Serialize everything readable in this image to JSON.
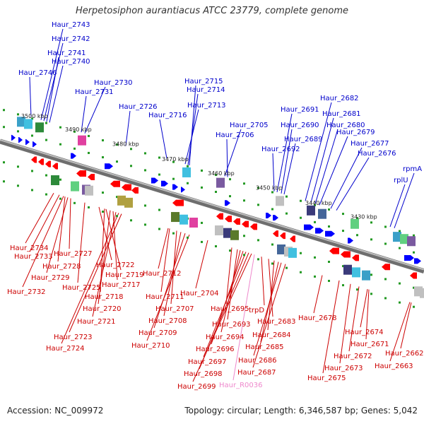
{
  "title": "Herpetosiphon aurantiacus ATCC 23779, complete genome",
  "footer": {
    "accession": "Accession: NC_009972",
    "info": "Topology: circular; Length: 6,346,587 bp; Genes: 5,042"
  },
  "colors": {
    "forward": "#0000ff",
    "reverse": "#ff0000",
    "label_forward": "#0000cc",
    "label_reverse": "#cc0000",
    "label_rna": "#ee88cc",
    "backbone": "#888888",
    "dots": "#229922"
  },
  "ticks": [
    "3500 kbp",
    "3490 kbp",
    "3480 kbp",
    "3470 kbp",
    "3460 kbp",
    "3450 kbp",
    "3440 kbp",
    "3430 kbp"
  ],
  "forward_genes": [
    "Haur_2743",
    "Haur_2742",
    "Haur_2741",
    "Haur_2740",
    "Haur_2746",
    "Haur_2730",
    "Haur_2731",
    "Haur_2715",
    "Haur_2714",
    "Haur_2713",
    "Haur_2726",
    "Haur_2716",
    "Haur_2705",
    "Haur_2706",
    "Haur_2682",
    "Haur_2691",
    "Haur_2681",
    "Haur_2690",
    "Haur_2680",
    "Haur_2689",
    "Haur_2679",
    "Haur_2692",
    "Haur_2677",
    "Haur_2676",
    "rpmA",
    "rplU"
  ],
  "reverse_genes": [
    "Haur_2734",
    "Haur_2733",
    "Haur_2727",
    "Haur_2728",
    "Haur_2729",
    "Haur_2732",
    "Haur_2725",
    "Haur_2722",
    "Haur_2719",
    "Haur_2717",
    "Haur_2718",
    "Haur_2720",
    "Haur_2721",
    "Haur_2723",
    "Haur_2724",
    "Haur_2712",
    "Haur_2711",
    "Haur_2707",
    "Haur_2708",
    "Haur_2709",
    "Haur_2710",
    "Haur_2704",
    "Haur_2695",
    "trpD",
    "Haur_2693",
    "Haur_2683",
    "Haur_2694",
    "Haur_2684",
    "Haur_2696",
    "Haur_2685",
    "Haur_2697",
    "Haur_2686",
    "Haur_2698",
    "Haur_2687",
    "Haur_2699",
    "Haur_2678",
    "Haur_2674",
    "Haur_2671",
    "Haur_2672",
    "Haur_2673",
    "Haur_2675",
    "Haur_2662",
    "Haur_2663"
  ],
  "rna_genes": [
    "Haur_R0036"
  ]
}
